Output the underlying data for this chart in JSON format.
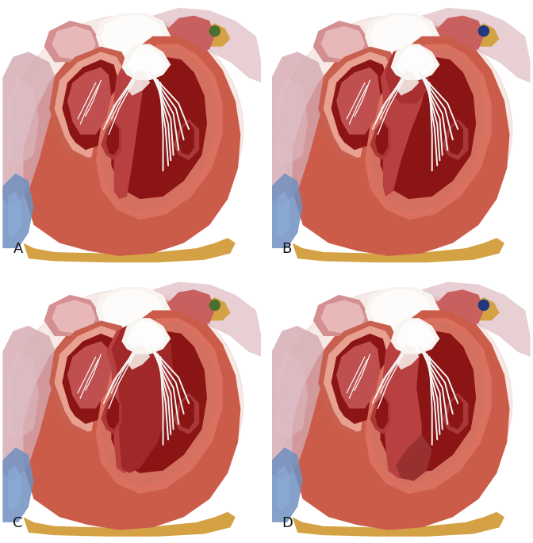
{
  "labels": [
    "A",
    "B",
    "C",
    "D"
  ],
  "bg_color": "#ffffff",
  "label_fontsize": 13,
  "heart_outer": "#cc5c4a",
  "heart_mid": "#d97060",
  "heart_light": "#e8a090",
  "heart_inner_light": "#f0c0b0",
  "blood_dark": "#8b1515",
  "blood_mid": "#9b2020",
  "fat_color": "#d4a245",
  "lung_left_color": "#d4a8b0",
  "lung_right_color": "#d8b0b8",
  "blue_vessel": "#7090c0",
  "white_structure": "#f2f0ee",
  "white_cream": "#f8f4f0",
  "pink_tissue": "#e8b8b8",
  "pink_light": "#f0d0d0",
  "septum_color": "#b84040",
  "dot_green": "#4a7030",
  "dot_blue": "#203880",
  "chordae": "#f5f5f5",
  "muscle_line": "#c07060"
}
